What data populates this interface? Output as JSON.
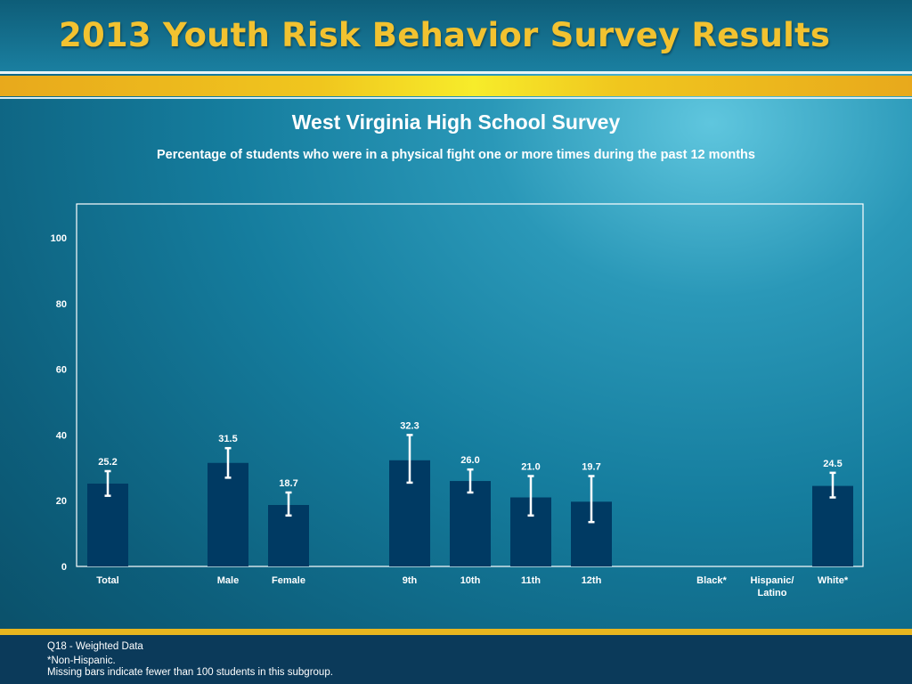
{
  "header": {
    "title": "2013 Youth Risk Behavior Survey Results"
  },
  "chart_data": {
    "type": "bar",
    "title": "West Virginia High School Survey",
    "subtitle": "Percentage of students who were in a physical fight one or more times during the past 12 months",
    "xlabel": "",
    "ylabel": "",
    "ylim": [
      0,
      110
    ],
    "yticks": [
      0,
      20,
      40,
      60,
      80,
      100
    ],
    "grid": false,
    "categories": [
      "Total",
      "Male",
      "Female",
      "9th",
      "10th",
      "11th",
      "12th",
      "Black*",
      "Hispanic/\nLatino",
      "White*"
    ],
    "values": [
      25.2,
      31.5,
      18.7,
      32.3,
      26.0,
      21.0,
      19.7,
      null,
      null,
      24.5
    ],
    "value_labels": [
      "25.2",
      "31.5",
      "18.7",
      "32.3",
      "26.0",
      "21.0",
      "19.7",
      "",
      "",
      "24.5"
    ],
    "ci_lower": [
      21.5,
      27.0,
      15.5,
      25.5,
      22.5,
      15.5,
      13.5,
      null,
      null,
      21.0
    ],
    "ci_upper": [
      29.0,
      36.0,
      22.5,
      40.0,
      29.5,
      27.5,
      27.5,
      null,
      null,
      28.5
    ],
    "bar_color": "#003a63",
    "error_bar_color": "#ffffff"
  },
  "footer": {
    "note1": "Q18 - Weighted Data",
    "note2": "*Non-Hispanic.",
    "note3": "Missing bars indicate fewer than 100 students in this subgroup."
  }
}
